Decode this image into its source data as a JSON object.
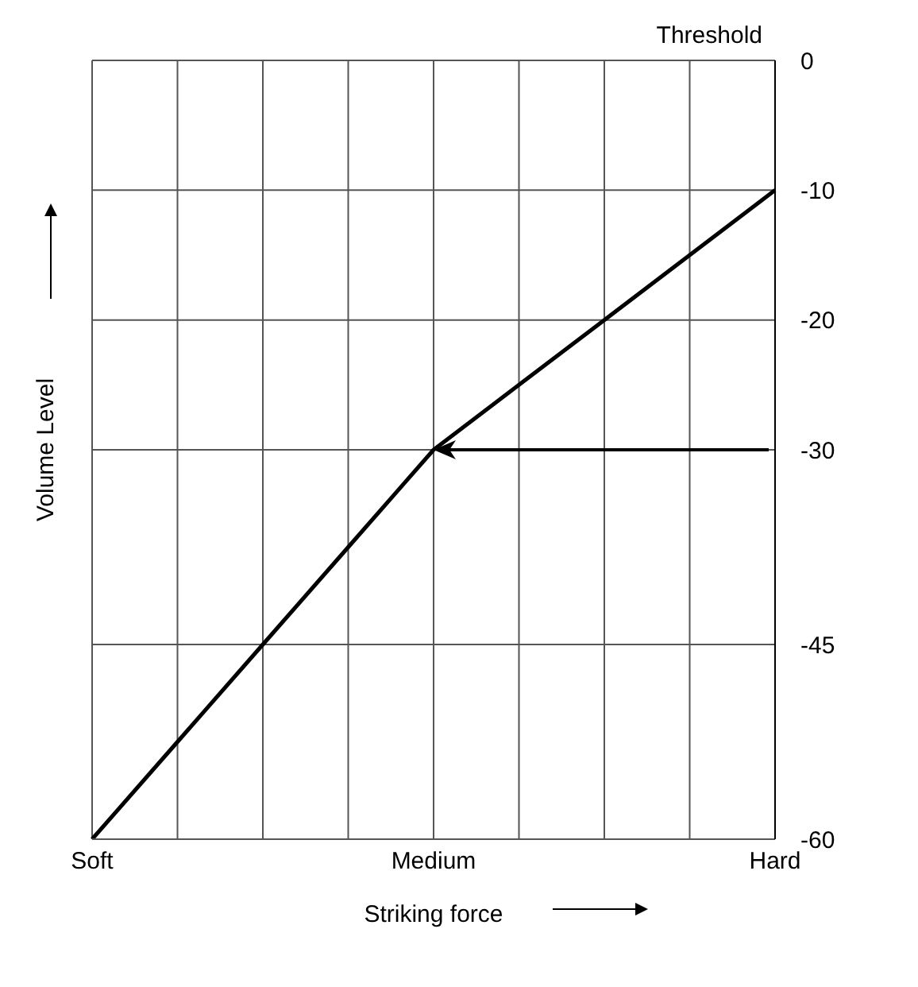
{
  "chart_data": {
    "type": "line",
    "xlabel": "Striking force",
    "ylabel": "Volume Level",
    "y2label": "Threshold",
    "categories": [
      "Soft",
      null,
      null,
      null,
      "Medium",
      null,
      null,
      null,
      "Hard"
    ],
    "series": [
      {
        "color": "#000000",
        "axis": "y2",
        "values": [
          -60,
          -52.5,
          -45,
          -37.5,
          -30,
          -25,
          -20,
          -15,
          -10
        ]
      }
    ],
    "y2lim": [
      -60,
      0
    ],
    "y2ticks": [
      0,
      -10,
      -20,
      -30,
      -45,
      -60
    ],
    "grid": true,
    "marker": "none",
    "line_style": "solid"
  }
}
